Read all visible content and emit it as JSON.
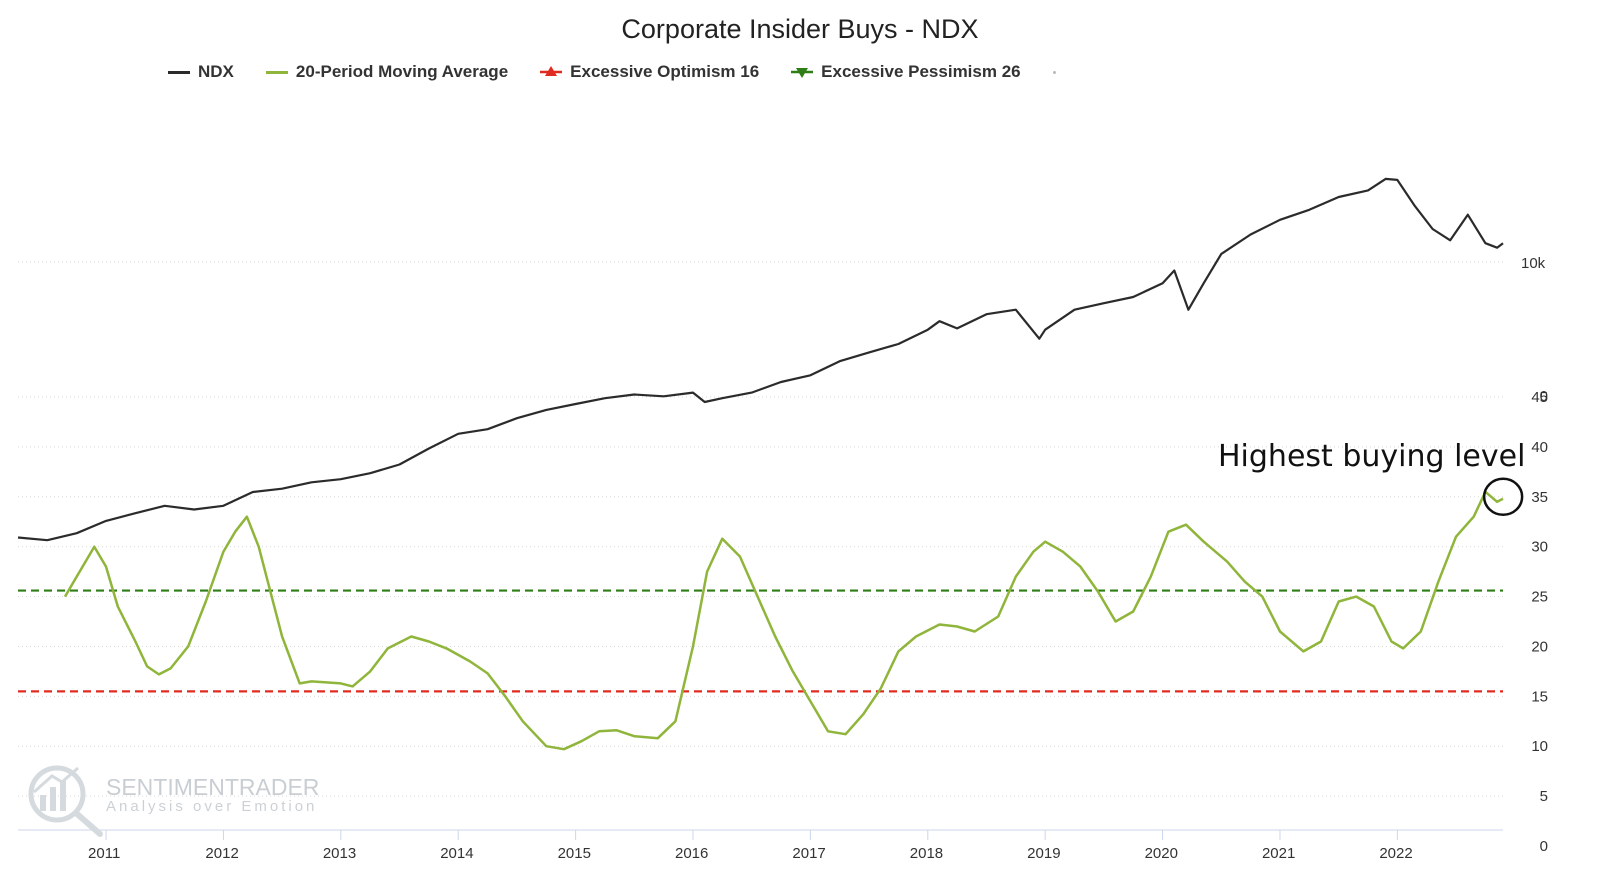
{
  "chart_data": {
    "type": "line",
    "title": "Corporate Insider Buys - NDX",
    "legend": [
      {
        "label": "NDX",
        "color": "#2b2b2b",
        "symbol": "line"
      },
      {
        "label": "20-Period Moving Average",
        "color": "#8fb53a",
        "symbol": "line"
      },
      {
        "label": "Excessive Optimism 16",
        "color": "#e02b20",
        "symbol": "triangle-up-line"
      },
      {
        "label": "Excessive Pessimism 26",
        "color": "#2e7d16",
        "symbol": "triangle-down-line"
      }
    ],
    "legend_placement": "top-left",
    "x_range": [
      2010.25,
      2022.9
    ],
    "x_ticks": [
      "2011",
      "2012",
      "2013",
      "2014",
      "2015",
      "2016",
      "2017",
      "2018",
      "2019",
      "2020",
      "2021",
      "2022"
    ],
    "x_tick_values": [
      2011,
      2012,
      2013,
      2014,
      2015,
      2016,
      2017,
      2018,
      2019,
      2020,
      2021,
      2022
    ],
    "grid": true,
    "upper_panel": {
      "series_name": "NDX",
      "scale": "log",
      "tick_label": "10k",
      "tick_value": 10000,
      "color": "#2b2b2b",
      "points": [
        [
          2010.25,
          1900
        ],
        [
          2010.5,
          1870
        ],
        [
          2010.75,
          1950
        ],
        [
          2011.0,
          2100
        ],
        [
          2011.25,
          2200
        ],
        [
          2011.5,
          2300
        ],
        [
          2011.75,
          2250
        ],
        [
          2012.0,
          2300
        ],
        [
          2012.25,
          2500
        ],
        [
          2012.5,
          2550
        ],
        [
          2012.75,
          2650
        ],
        [
          2013.0,
          2700
        ],
        [
          2013.25,
          2800
        ],
        [
          2013.5,
          2950
        ],
        [
          2013.75,
          3250
        ],
        [
          2014.0,
          3550
        ],
        [
          2014.25,
          3650
        ],
        [
          2014.5,
          3900
        ],
        [
          2014.75,
          4100
        ],
        [
          2015.0,
          4250
        ],
        [
          2015.25,
          4400
        ],
        [
          2015.5,
          4500
        ],
        [
          2015.75,
          4450
        ],
        [
          2016.0,
          4550
        ],
        [
          2016.1,
          4300
        ],
        [
          2016.25,
          4400
        ],
        [
          2016.5,
          4550
        ],
        [
          2016.75,
          4850
        ],
        [
          2017.0,
          5050
        ],
        [
          2017.25,
          5500
        ],
        [
          2017.5,
          5800
        ],
        [
          2017.75,
          6100
        ],
        [
          2018.0,
          6650
        ],
        [
          2018.1,
          7000
        ],
        [
          2018.25,
          6700
        ],
        [
          2018.5,
          7300
        ],
        [
          2018.75,
          7500
        ],
        [
          2018.95,
          6300
        ],
        [
          2019.0,
          6650
        ],
        [
          2019.25,
          7500
        ],
        [
          2019.5,
          7800
        ],
        [
          2019.75,
          8100
        ],
        [
          2020.0,
          8800
        ],
        [
          2020.1,
          9500
        ],
        [
          2020.22,
          7500
        ],
        [
          2020.35,
          8800
        ],
        [
          2020.5,
          10500
        ],
        [
          2020.75,
          11800
        ],
        [
          2021.0,
          12900
        ],
        [
          2021.25,
          13700
        ],
        [
          2021.5,
          14800
        ],
        [
          2021.75,
          15400
        ],
        [
          2021.9,
          16500
        ],
        [
          2022.0,
          16400
        ],
        [
          2022.15,
          14000
        ],
        [
          2022.3,
          12200
        ],
        [
          2022.45,
          11400
        ],
        [
          2022.6,
          13300
        ],
        [
          2022.75,
          11200
        ],
        [
          2022.85,
          10900
        ],
        [
          2022.9,
          11200
        ]
      ]
    },
    "lower_panel": {
      "series_name": "20-Period Moving Average",
      "color": "#8fb53a",
      "y_range": [
        0,
        45
      ],
      "y_ticks": [
        0,
        5,
        10,
        15,
        20,
        25,
        30,
        35,
        40,
        45
      ],
      "y_tick_labels": [
        "0",
        "5",
        "10",
        "15",
        "20",
        "25",
        "30",
        "35",
        "40",
        "45"
      ],
      "points": [
        [
          2010.65,
          25
        ],
        [
          2010.75,
          27
        ],
        [
          2010.9,
          30
        ],
        [
          2011.0,
          28
        ],
        [
          2011.1,
          24
        ],
        [
          2011.25,
          20.5
        ],
        [
          2011.35,
          18
        ],
        [
          2011.45,
          17.2
        ],
        [
          2011.55,
          17.8
        ],
        [
          2011.7,
          20
        ],
        [
          2011.85,
          24.5
        ],
        [
          2012.0,
          29.5
        ],
        [
          2012.1,
          31.5
        ],
        [
          2012.2,
          33
        ],
        [
          2012.3,
          30
        ],
        [
          2012.5,
          21
        ],
        [
          2012.65,
          16.3
        ],
        [
          2012.75,
          16.5
        ],
        [
          2013.0,
          16.3
        ],
        [
          2013.1,
          16
        ],
        [
          2013.25,
          17.5
        ],
        [
          2013.4,
          19.8
        ],
        [
          2013.6,
          21
        ],
        [
          2013.75,
          20.5
        ],
        [
          2013.9,
          19.8
        ],
        [
          2014.1,
          18.5
        ],
        [
          2014.25,
          17.3
        ],
        [
          2014.4,
          15
        ],
        [
          2014.55,
          12.5
        ],
        [
          2014.75,
          10
        ],
        [
          2014.9,
          9.7
        ],
        [
          2015.05,
          10.5
        ],
        [
          2015.2,
          11.5
        ],
        [
          2015.35,
          11.6
        ],
        [
          2015.5,
          11
        ],
        [
          2015.7,
          10.8
        ],
        [
          2015.85,
          12.5
        ],
        [
          2016.0,
          20
        ],
        [
          2016.12,
          27.5
        ],
        [
          2016.25,
          30.8
        ],
        [
          2016.4,
          29
        ],
        [
          2016.55,
          25
        ],
        [
          2016.7,
          21
        ],
        [
          2016.85,
          17.5
        ],
        [
          2017.0,
          14.5
        ],
        [
          2017.15,
          11.5
        ],
        [
          2017.3,
          11.2
        ],
        [
          2017.45,
          13.2
        ],
        [
          2017.6,
          15.8
        ],
        [
          2017.75,
          19.5
        ],
        [
          2017.9,
          21
        ],
        [
          2018.1,
          22.2
        ],
        [
          2018.25,
          22
        ],
        [
          2018.4,
          21.5
        ],
        [
          2018.6,
          23
        ],
        [
          2018.75,
          27
        ],
        [
          2018.9,
          29.5
        ],
        [
          2019.0,
          30.5
        ],
        [
          2019.15,
          29.5
        ],
        [
          2019.3,
          28
        ],
        [
          2019.45,
          25.5
        ],
        [
          2019.6,
          22.5
        ],
        [
          2019.75,
          23.5
        ],
        [
          2019.9,
          27
        ],
        [
          2020.05,
          31.5
        ],
        [
          2020.2,
          32.2
        ],
        [
          2020.35,
          30.5
        ],
        [
          2020.55,
          28.5
        ],
        [
          2020.7,
          26.5
        ],
        [
          2020.85,
          25
        ],
        [
          2021.0,
          21.5
        ],
        [
          2021.2,
          19.5
        ],
        [
          2021.35,
          20.5
        ],
        [
          2021.5,
          24.5
        ],
        [
          2021.65,
          25
        ],
        [
          2021.8,
          24
        ],
        [
          2021.95,
          20.5
        ],
        [
          2022.05,
          19.8
        ],
        [
          2022.2,
          21.5
        ],
        [
          2022.35,
          26.5
        ],
        [
          2022.5,
          31
        ],
        [
          2022.65,
          33
        ],
        [
          2022.75,
          35.5
        ],
        [
          2022.85,
          34.5
        ],
        [
          2022.9,
          34.8
        ]
      ],
      "reference_lines": [
        {
          "label": "Excessive Optimism 16",
          "value": 15.5,
          "color": "#e02b20",
          "style": "dashed"
        },
        {
          "label": "Excessive Pessimism 26",
          "value": 25.6,
          "color": "#2e7d16",
          "style": "dashed"
        }
      ],
      "annotation": {
        "text": "Highest buying level",
        "x": 2022.85,
        "y": 35
      }
    }
  },
  "watermark": {
    "title": "SENTIMENTRADER",
    "subtitle": "Analysis over Emotion"
  }
}
